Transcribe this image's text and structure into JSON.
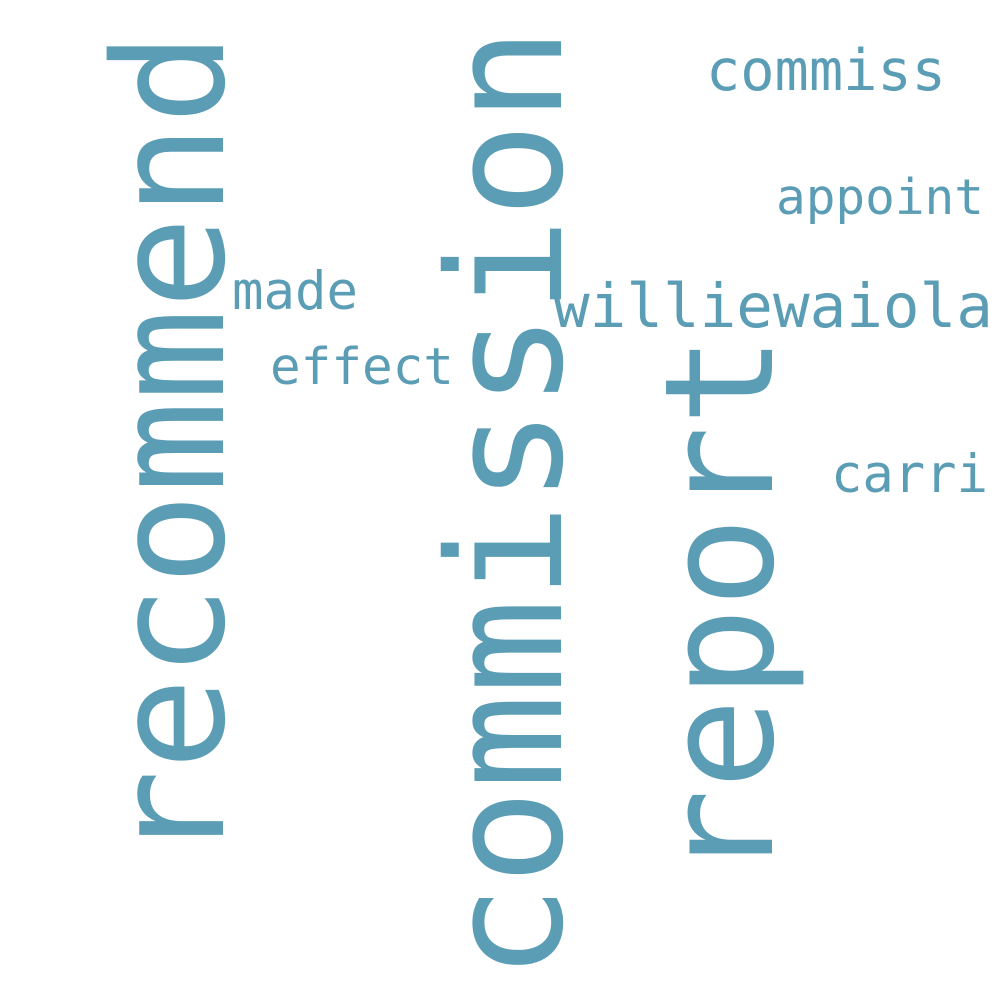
{
  "word_color": "#5b9db5",
  "background_color": "#ffffff",
  "words": [
    {
      "text": "recommend",
      "orientation": "vertical"
    },
    {
      "text": "commission",
      "orientation": "vertical"
    },
    {
      "text": "report",
      "orientation": "vertical"
    },
    {
      "text": "commiss",
      "orientation": "horizontal"
    },
    {
      "text": "appoint",
      "orientation": "horizontal"
    },
    {
      "text": "made",
      "orientation": "horizontal"
    },
    {
      "text": "williewaiola",
      "orientation": "horizontal"
    },
    {
      "text": "effect",
      "orientation": "horizontal"
    },
    {
      "text": "carri",
      "orientation": "horizontal"
    }
  ]
}
